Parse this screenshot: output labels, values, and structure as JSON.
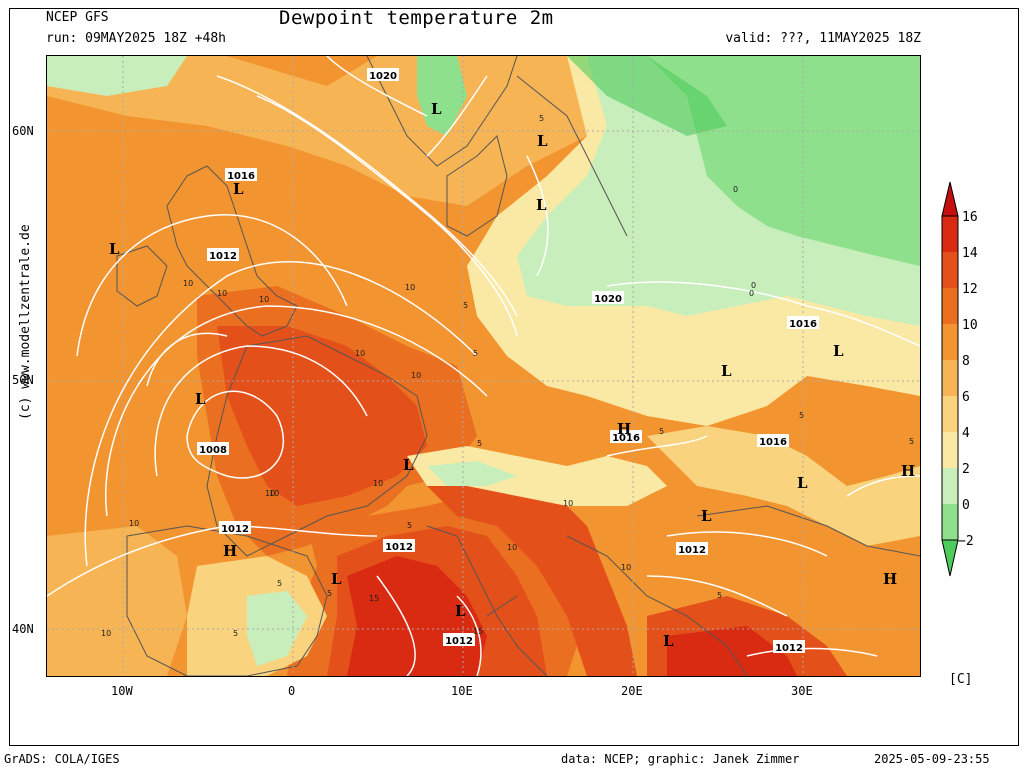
{
  "header": {
    "model": "NCEP GFS",
    "title": "Dewpoint temperature 2m",
    "run": "run: 09MAY2025 18Z +48h",
    "valid": "valid: ???, 11MAY2025 18Z"
  },
  "footer": {
    "grads": "GrADS: COLA/IGES",
    "credit": "data: NCEP; graphic: Janek Zimmer",
    "timestamp": "2025-05-09-23:55"
  },
  "watermark": "(c)  www.modellzentrale.de",
  "axes": {
    "lat_labels": [
      "60N",
      "50N",
      "40N"
    ],
    "lon_labels": [
      "10W",
      "0",
      "10E",
      "20E",
      "30E"
    ]
  },
  "colorbar": {
    "unit": "[C]",
    "levels": [
      "16",
      "14",
      "12",
      "10",
      "8",
      "6",
      "4",
      "2",
      "0",
      "−2"
    ],
    "colors": [
      "#c40f0f",
      "#d92a12",
      "#e4501a",
      "#eb6f20",
      "#f29430",
      "#f6b454",
      "#f9d37e",
      "#fae9a4",
      "#c8eebb",
      "#8ee08c",
      "#4fcb5b"
    ]
  },
  "map_data": {
    "pressure_labels": [
      "1020",
      "1016",
      "1012",
      "1008",
      "1012",
      "1012",
      "1020",
      "1016",
      "1016",
      "1016",
      "1012",
      "1012",
      "1012"
    ],
    "pressure_centers": [
      "L",
      "L",
      "L",
      "L",
      "L",
      "H",
      "L",
      "L",
      "H",
      "L",
      "L",
      "H",
      "L",
      "L",
      "L",
      "H",
      "L",
      "L"
    ],
    "dewpoint_labels": [
      "5",
      "10",
      "10",
      "10",
      "10",
      "10",
      "10",
      "5",
      "5",
      "10",
      "10",
      "5",
      "0",
      "0",
      "5",
      "5",
      "5",
      "10",
      "10",
      "10",
      "15",
      "15",
      "10",
      "5",
      "5",
      "5",
      "10",
      "10",
      "5",
      "0",
      "5",
      "10"
    ]
  }
}
